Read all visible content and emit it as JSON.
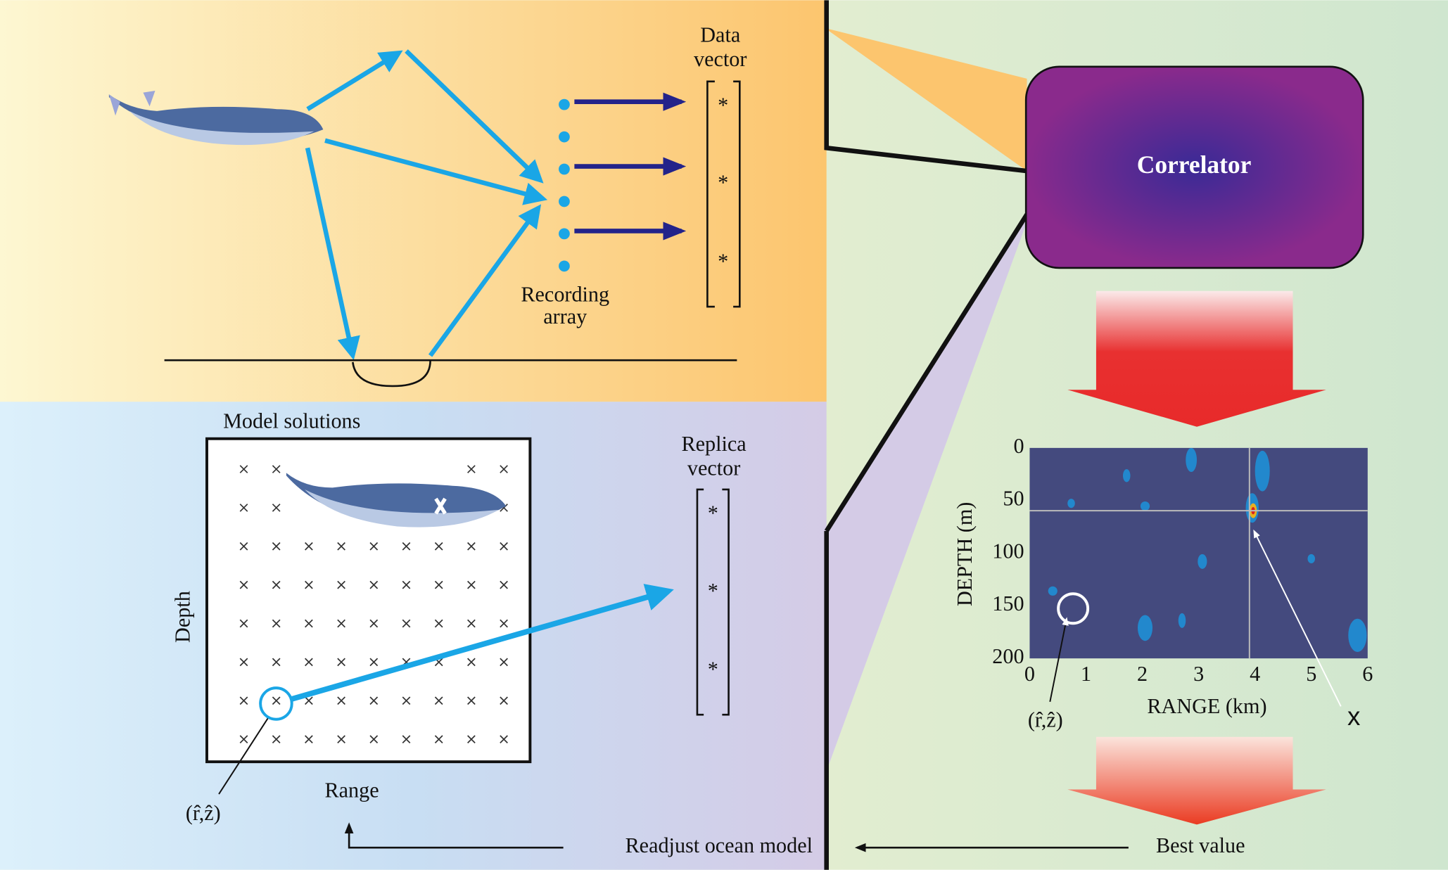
{
  "top": {
    "data_vector": {
      "title": [
        "Data",
        "vector"
      ],
      "entries": [
        "*",
        "*",
        "*"
      ]
    },
    "recording_array": [
      "Recording",
      "array"
    ]
  },
  "bottom": {
    "model_solutions": "Model solutions",
    "depth": "Depth",
    "range": "Range",
    "estimate": "(r̂,ẑ)",
    "replica_vector": {
      "title": [
        "Replica",
        "vector"
      ],
      "entries": [
        "*",
        "*",
        "*"
      ]
    },
    "readjust": "Readjust ocean model"
  },
  "right": {
    "correlator": "Correlator",
    "plot": {
      "y_label": "DEPTH (m)",
      "x_label": "RANGE (km)",
      "yticks": [
        0,
        50,
        100,
        150,
        200
      ],
      "xticks": [
        0,
        1,
        2,
        3,
        4,
        5,
        6
      ],
      "estimate": "(r̂,ẑ)",
      "marker": "x"
    },
    "best_value": "Best value"
  }
}
